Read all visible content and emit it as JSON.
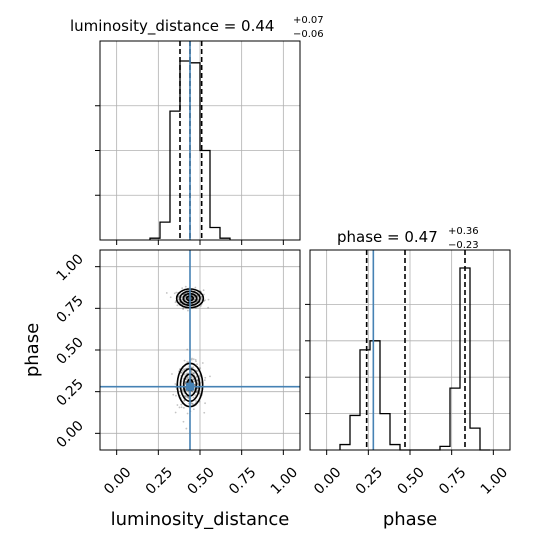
{
  "chart_data": {
    "type": "corner",
    "parameters": [
      "luminosity_distance",
      "phase"
    ],
    "colors": {
      "truth": "#4682b4",
      "hist": "#000000",
      "grid": "#b0b0b0",
      "points": "#555555"
    },
    "grid": true,
    "titles": [
      {
        "param": "luminosity_distance",
        "median": "0.44",
        "upper": "+0.07",
        "lower": "−0.06",
        "prefix": "luminosity_distance = "
      },
      {
        "param": "phase",
        "median": "0.47",
        "upper": "+0.36",
        "lower": "−0.23",
        "prefix": "phase = "
      }
    ],
    "axes": {
      "luminosity_distance": {
        "range": [
          -0.1,
          1.1
        ],
        "ticks": [
          0.0,
          0.25,
          0.5,
          0.75,
          1.0
        ],
        "tick_labels": [
          "0.00",
          "0.25",
          "0.50",
          "0.75",
          "1.00"
        ],
        "xlabel": "luminosity_distance"
      },
      "phase": {
        "range": [
          -0.1,
          1.1
        ],
        "ticks": [
          0.0,
          0.25,
          0.5,
          0.75,
          1.0
        ],
        "tick_labels": [
          "0.00",
          "0.25",
          "0.50",
          "0.75",
          "1.00"
        ],
        "xlabel": "phase",
        "ylabel": "phase"
      }
    },
    "hist_luminosity_distance": {
      "bin_edges": [
        0.2,
        0.26,
        0.32,
        0.38,
        0.44,
        0.5,
        0.56,
        0.62,
        0.68
      ],
      "counts": [
        0.01,
        0.1,
        0.72,
        1.0,
        0.99,
        0.5,
        0.07,
        0.01
      ],
      "quantiles": [
        0.38,
        0.44,
        0.51
      ],
      "truth": 0.44
    },
    "hist_phase": {
      "bin_edges": [
        0.08,
        0.14,
        0.2,
        0.26,
        0.32,
        0.38,
        0.44,
        0.5,
        0.56,
        0.62,
        0.68,
        0.74,
        0.8,
        0.86,
        0.92,
        0.98
      ],
      "counts": [
        0.03,
        0.19,
        0.55,
        0.6,
        0.2,
        0.03,
        0.0,
        0.0,
        0.0,
        0.0,
        0.02,
        0.34,
        1.0,
        0.12,
        0.0
      ],
      "quantiles": [
        0.24,
        0.47,
        0.83
      ],
      "truth": 0.28
    },
    "scatter_2d": {
      "modes": [
        {
          "x": 0.44,
          "y": 0.81,
          "sx": 0.04,
          "sy": 0.028,
          "n": 260
        },
        {
          "x": 0.44,
          "y": 0.29,
          "sx": 0.038,
          "sy": 0.065,
          "n": 340
        }
      ],
      "truth": {
        "x": 0.44,
        "y": 0.28
      }
    }
  }
}
